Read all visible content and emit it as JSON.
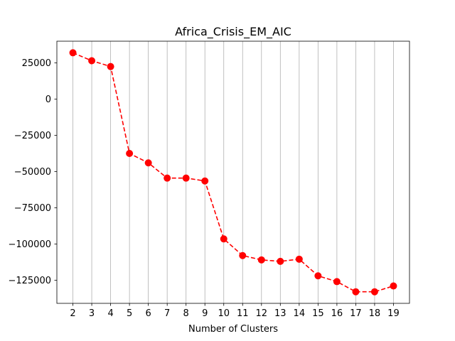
{
  "chart_data": {
    "type": "line",
    "title": "Africa_Crisis_EM_AIC",
    "xlabel": "Number of Clusters",
    "ylabel": "",
    "x": [
      2,
      3,
      4,
      5,
      6,
      7,
      8,
      9,
      10,
      11,
      12,
      13,
      14,
      15,
      16,
      17,
      18,
      19
    ],
    "series": [
      {
        "values": [
          32000,
          26500,
          22500,
          -37500,
          -44000,
          -54500,
          -54500,
          -56500,
          -96500,
          -108000,
          -111000,
          -112000,
          -110500,
          -122000,
          -126000,
          -133000,
          -133000,
          -129000
        ],
        "color": "#ff0000",
        "line_style": "dashed",
        "marker": "circle"
      }
    ],
    "xticks": [
      "2",
      "3",
      "4",
      "5",
      "6",
      "7",
      "8",
      "9",
      "10",
      "11",
      "12",
      "13",
      "14",
      "15",
      "16",
      "17",
      "18",
      "19"
    ],
    "yticks": [
      25000,
      0,
      -25000,
      -50000,
      -75000,
      -100000,
      -125000
    ],
    "ytick_labels": [
      "25000",
      "0",
      "−25000",
      "−50000",
      "−75000",
      "−100000",
      "−125000"
    ],
    "xlim": [
      1.15,
      19.85
    ],
    "ylim": [
      -141000,
      40000
    ],
    "grid": "vertical"
  }
}
